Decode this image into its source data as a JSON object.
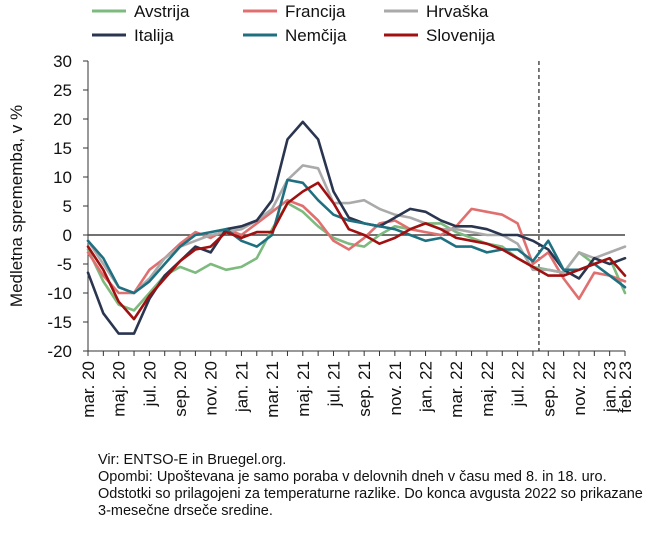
{
  "chart_data": {
    "type": "line",
    "title": "",
    "ylabel": "Medletna sprememba, v %",
    "xlabel": "",
    "ylim": [
      -20,
      30
    ],
    "yticks": [
      "30",
      "25",
      "20",
      "15",
      "10",
      "5",
      "0",
      "-5",
      "-10",
      "-15",
      "-20"
    ],
    "x_labels": [
      "mar. 20",
      "maj. 20",
      "jul. 20",
      "sep. 20",
      "nov. 20",
      "jan. 21",
      "mar. 21",
      "maj. 21",
      "jul. 21",
      "sep. 21",
      "nov. 21",
      "jan. 22",
      "mar. 22",
      "maj. 22",
      "jul. 22",
      "sep. 22",
      "nov. 22",
      "jan. 23",
      "feb. 23"
    ],
    "x": [
      "2020-03",
      "2020-04",
      "2020-05",
      "2020-06",
      "2020-07",
      "2020-08",
      "2020-09",
      "2020-10",
      "2020-11",
      "2020-12",
      "2021-01",
      "2021-02",
      "2021-03",
      "2021-04",
      "2021-05",
      "2021-06",
      "2021-07",
      "2021-08",
      "2021-09",
      "2021-10",
      "2021-11",
      "2021-12",
      "2022-01",
      "2022-02",
      "2022-03",
      "2022-04",
      "2022-05",
      "2022-06",
      "2022-07",
      "2022-08",
      "2022-09",
      "2022-10",
      "2022-11",
      "2022-12",
      "2023-01",
      "2023-02"
    ],
    "marker_line": "2022-08",
    "legend": "top",
    "series": [
      {
        "name": "Avstrija",
        "color": "#7dba7d",
        "values": [
          -2.5,
          -8,
          -12,
          -13,
          -10,
          -7,
          -5.5,
          -6.5,
          -5,
          -6,
          -5.5,
          -4,
          1,
          5.5,
          4,
          1.5,
          -0.5,
          -1.5,
          -2,
          0,
          1.5,
          1,
          2,
          2,
          0.5,
          -0.5,
          -1.5,
          -2,
          -4,
          -5.5,
          -6,
          -6.5,
          -3,
          -5,
          -4,
          -10
        ]
      },
      {
        "name": "Francija",
        "color": "#e07070",
        "values": [
          -3,
          -7,
          -10,
          -10,
          -6,
          -4,
          -1.5,
          0.5,
          -0.5,
          1,
          0,
          2,
          4,
          6,
          5,
          2.5,
          -1,
          -2.5,
          -0.5,
          2,
          2.5,
          1,
          0.5,
          0,
          1.5,
          4.5,
          4,
          3.5,
          2,
          -5,
          -3,
          -7.5,
          -11,
          -6.5,
          -7,
          -8
        ]
      },
      {
        "name": "Hrvaška",
        "color": "#aaaaaa",
        "values": [
          -1,
          -5,
          -9,
          -10,
          -7.5,
          -4,
          -2,
          -1,
          0,
          0.5,
          1,
          2.5,
          4.5,
          9.5,
          12,
          11.5,
          5.5,
          5.5,
          6,
          4.5,
          3.5,
          3,
          2,
          1,
          1,
          0.5,
          0,
          0,
          -1.5,
          -6,
          -6,
          -6.5,
          -3,
          -4,
          -3,
          -2
        ]
      },
      {
        "name": "Italija",
        "color": "#2a3550",
        "values": [
          -6.5,
          -13.5,
          -17,
          -17,
          -11,
          -7,
          -4.5,
          -2,
          -3,
          1,
          1.5,
          2.5,
          6,
          16.5,
          19.5,
          16.5,
          7.5,
          3,
          2,
          1.5,
          3,
          4.5,
          4,
          2.5,
          1.5,
          1.5,
          1,
          0,
          0,
          -1,
          -2.5,
          -6,
          -7.5,
          -4,
          -5,
          -4
        ]
      },
      {
        "name": "Nemčija",
        "color": "#1e7080",
        "values": [
          -1,
          -4,
          -9,
          -10,
          -8,
          -5,
          -2,
          0,
          0.5,
          1,
          -1,
          -2,
          0,
          9.5,
          9,
          6,
          3.5,
          2.5,
          2,
          1.5,
          1,
          0,
          -1,
          -0.5,
          -2,
          -2,
          -3,
          -2.5,
          -2.5,
          -4.5,
          -1,
          -6,
          -6,
          -5,
          -7,
          -9
        ]
      },
      {
        "name": "Slovenija",
        "color": "#a01010",
        "values": [
          -2,
          -6,
          -11.5,
          -14.5,
          -10.5,
          -7.5,
          -4.5,
          -2.5,
          -2,
          0.5,
          -0.5,
          0.5,
          0.5,
          5.5,
          7.5,
          9,
          5.5,
          1,
          0,
          -1.5,
          -0.5,
          1,
          2,
          1,
          -0.5,
          -1,
          -1.5,
          -2.5,
          -4,
          -5.5,
          -7,
          -7,
          -6,
          -5,
          -4,
          -7
        ]
      }
    ]
  },
  "notes": {
    "source": "Vir: ENTSO-E in Bruegel.org.",
    "note": "Opombi: Upoštevana je samo poraba v delovnih dneh v času med 8. in 18. uro. Odstotki so prilagojeni za temperaturne razlike. Do konca avgusta 2022 so prikazane 3-mesečne drseče sredine."
  }
}
